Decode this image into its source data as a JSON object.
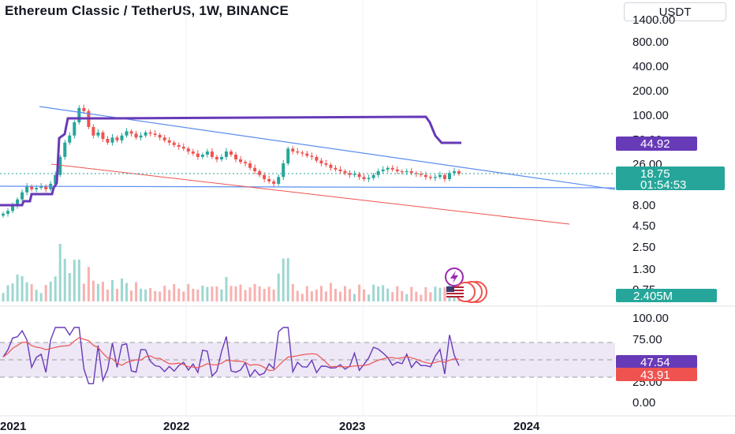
{
  "header": {
    "title": "Ethereum Classic / TetherUS, 1W, BINANCE",
    "currency": "USDT"
  },
  "colors": {
    "up": "#26a69a",
    "down": "#ef5350",
    "trendline": "#5b8def",
    "support": "#ef5350",
    "indicator": "#673ab7",
    "rsi_ma": "#ef5350",
    "price_badge": "#26a69a",
    "indicator_badge": "#673ab7",
    "rsi_band": "#ede7f6"
  },
  "chart_data": [
    {
      "type": "candlestick",
      "title": "Ethereum Classic / TetherUS, 1W, BINANCE",
      "scale": "log",
      "y_ticks": [
        "1400.00",
        "800.00",
        "400.00",
        "200.00",
        "100.00",
        "50.00",
        "26.00",
        "8.00",
        "4.50",
        "2.50",
        "1.30",
        "0.75"
      ],
      "x_ticks": [
        "2021",
        "2022",
        "2023",
        "2024"
      ],
      "last_price": "18.75",
      "countdown": "01:54:53",
      "indicator_value": "44.92",
      "volume_label": "2.405M",
      "ohlc_weekly_approx": {
        "start": "2020-12",
        "closes": [
          6,
          6.5,
          7.5,
          9,
          11,
          13,
          12,
          12.5,
          13,
          12,
          14,
          18,
          30,
          45,
          55,
          80,
          120,
          110,
          70,
          55,
          60,
          50,
          45,
          52,
          48,
          55,
          62,
          58,
          52,
          55,
          60,
          58,
          56,
          52,
          48,
          45,
          42,
          40,
          38,
          35,
          33,
          30,
          32,
          35,
          30,
          28,
          30,
          35,
          32,
          28,
          26,
          25,
          22,
          20,
          18,
          16,
          15,
          14,
          17,
          25,
          38,
          35,
          34,
          33,
          31,
          30,
          27,
          25,
          24,
          22,
          21,
          20,
          19,
          18,
          18.5,
          17,
          16,
          16.5,
          18,
          20,
          21,
          22,
          21,
          20,
          19.5,
          20,
          19,
          18.5,
          18,
          17,
          16.5,
          17,
          18,
          16,
          19,
          20,
          18.75
        ]
      }
    },
    {
      "type": "area",
      "title": "RSI",
      "y_ticks": [
        "100.00",
        "75.00",
        "25.00",
        "0.00"
      ],
      "rsi_value": "47.54",
      "rsi_ma_value": "43.91"
    }
  ]
}
